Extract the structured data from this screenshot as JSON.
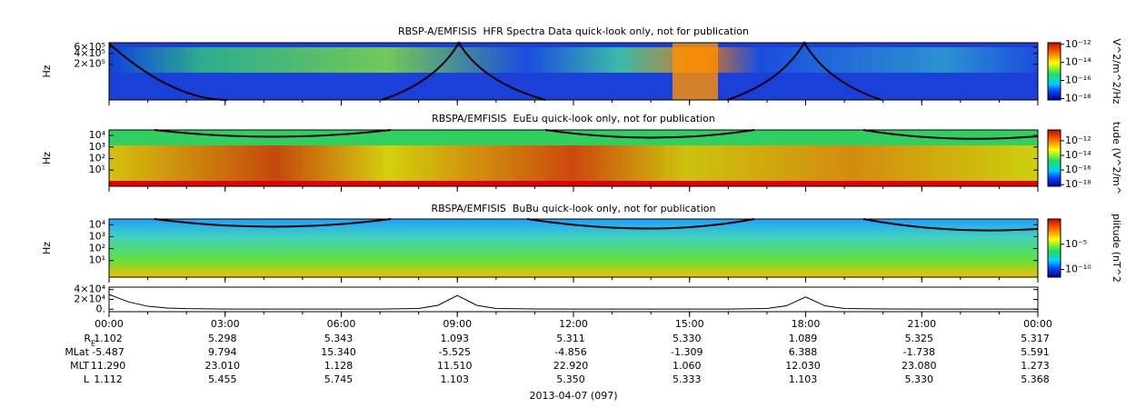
{
  "chart_data": [
    {
      "type": "spectrogram",
      "title": "RBSP-A/EMFISIS  HFR Spectra Data quick-look only, not for publication",
      "ylabel": "Hz",
      "log_y": true,
      "ylim": [
        20000,
        800000
      ],
      "yticks": [
        {
          "value": 200000,
          "label": "2×10⁵"
        },
        {
          "value": 400000,
          "label": "4×10⁵"
        },
        {
          "value": 600000,
          "label": "6×10⁵"
        }
      ],
      "clim": [
        7e-19,
        1.5e-12
      ],
      "cticks": [
        {
          "value": 1e-18,
          "label": "10⁻¹⁸"
        },
        {
          "value": 1e-16,
          "label": "10⁻¹⁶"
        },
        {
          "value": 1e-14,
          "label": "10⁻¹⁴"
        },
        {
          "value": 1e-12,
          "label": "10⁻¹²"
        }
      ],
      "clabel": "V^2/m^2/Hz"
    },
    {
      "type": "spectrogram",
      "title": "RBSPA/EMFISIS  EuEu quick-look only, not for publication",
      "ylabel": "Hz",
      "log_y": true,
      "ylim": [
        0.4,
        30000
      ],
      "yticks": [
        {
          "value": 10,
          "label": "10¹"
        },
        {
          "value": 100,
          "label": "10²"
        },
        {
          "value": 1000,
          "label": "10³"
        },
        {
          "value": 10000,
          "label": "10⁴"
        }
      ],
      "clim": [
        6e-19,
        3e-11
      ],
      "cticks": [
        {
          "value": 1e-18,
          "label": "10⁻¹⁸"
        },
        {
          "value": 1e-16,
          "label": "10⁻¹⁶"
        },
        {
          "value": 1e-14,
          "label": "10⁻¹⁴"
        },
        {
          "value": 1e-12,
          "label": "10⁻¹²"
        }
      ],
      "clabel": "tude (V^2/m^"
    },
    {
      "type": "spectrogram",
      "title": "RBSPA/EMFISIS  BuBu quick-look only, not for publication",
      "ylabel": "Hz",
      "log_y": true,
      "ylim": [
        0.4,
        30000
      ],
      "yticks": [
        {
          "value": 10,
          "label": "10¹"
        },
        {
          "value": 100,
          "label": "10²"
        },
        {
          "value": 1000,
          "label": "10³"
        },
        {
          "value": 10000,
          "label": "10⁴"
        }
      ],
      "clim": [
        3e-12,
        1
      ],
      "cticks": [
        {
          "value": 1e-10,
          "label": "10⁻¹⁰"
        },
        {
          "value": 1e-05,
          "label": "10⁻⁵"
        }
      ],
      "clabel": "plitude (nT^2"
    },
    {
      "type": "line",
      "xlabel": "2013-04-07 (097)",
      "color": "#000000",
      "ylim": [
        -5000,
        45000
      ],
      "yticks": [
        {
          "value": 0,
          "label": "0."
        },
        {
          "value": 20000,
          "label": "2×10⁴"
        },
        {
          "value": 40000,
          "label": "4×10⁴"
        }
      ],
      "xlim": [
        0,
        24
      ],
      "xticks": [
        {
          "value": 0,
          "label": "00:00"
        },
        {
          "value": 3,
          "label": "03:00"
        },
        {
          "value": 6,
          "label": "06:00"
        },
        {
          "value": 9,
          "label": "09:00"
        },
        {
          "value": 12,
          "label": "12:00"
        },
        {
          "value": 15,
          "label": "15:00"
        },
        {
          "value": 18,
          "label": "18:00"
        },
        {
          "value": 21,
          "label": "21:00"
        },
        {
          "value": 24,
          "label": "00:00"
        }
      ],
      "x": [
        0,
        0.5,
        1,
        1.5,
        2,
        3,
        7,
        8,
        8.5,
        9,
        9.5,
        10,
        11,
        12,
        16,
        17,
        17.5,
        18,
        18.5,
        19,
        20,
        21,
        24
      ],
      "values": [
        30000,
        15000,
        6000,
        2500,
        1200,
        400,
        400,
        1500,
        8000,
        28000,
        8000,
        1500,
        500,
        400,
        400,
        1500,
        7000,
        25000,
        7000,
        1500,
        500,
        400,
        400
      ]
    }
  ],
  "ephemeris": {
    "rows": [
      {
        "label": "R",
        "sub": "E",
        "values": [
          "1.102",
          "5.298",
          "5.343",
          "1.093",
          "5.311",
          "5.330",
          "1.089",
          "5.325",
          "5.317"
        ]
      },
      {
        "label": "MLat",
        "values": [
          "-5.487",
          "9.794",
          "15.340",
          "-5.525",
          "-4.856",
          "-1.309",
          "6.388",
          "-1.738",
          "5.591"
        ]
      },
      {
        "label": "MLT",
        "values": [
          "11.290",
          "23.010",
          "1.128",
          "11.510",
          "22.920",
          "1.060",
          "12.030",
          "23.080",
          "1.273"
        ]
      },
      {
        "label": "L",
        "values": [
          "1.112",
          "5.455",
          "5.745",
          "1.103",
          "5.350",
          "5.333",
          "1.103",
          "5.330",
          "5.368"
        ]
      }
    ]
  }
}
